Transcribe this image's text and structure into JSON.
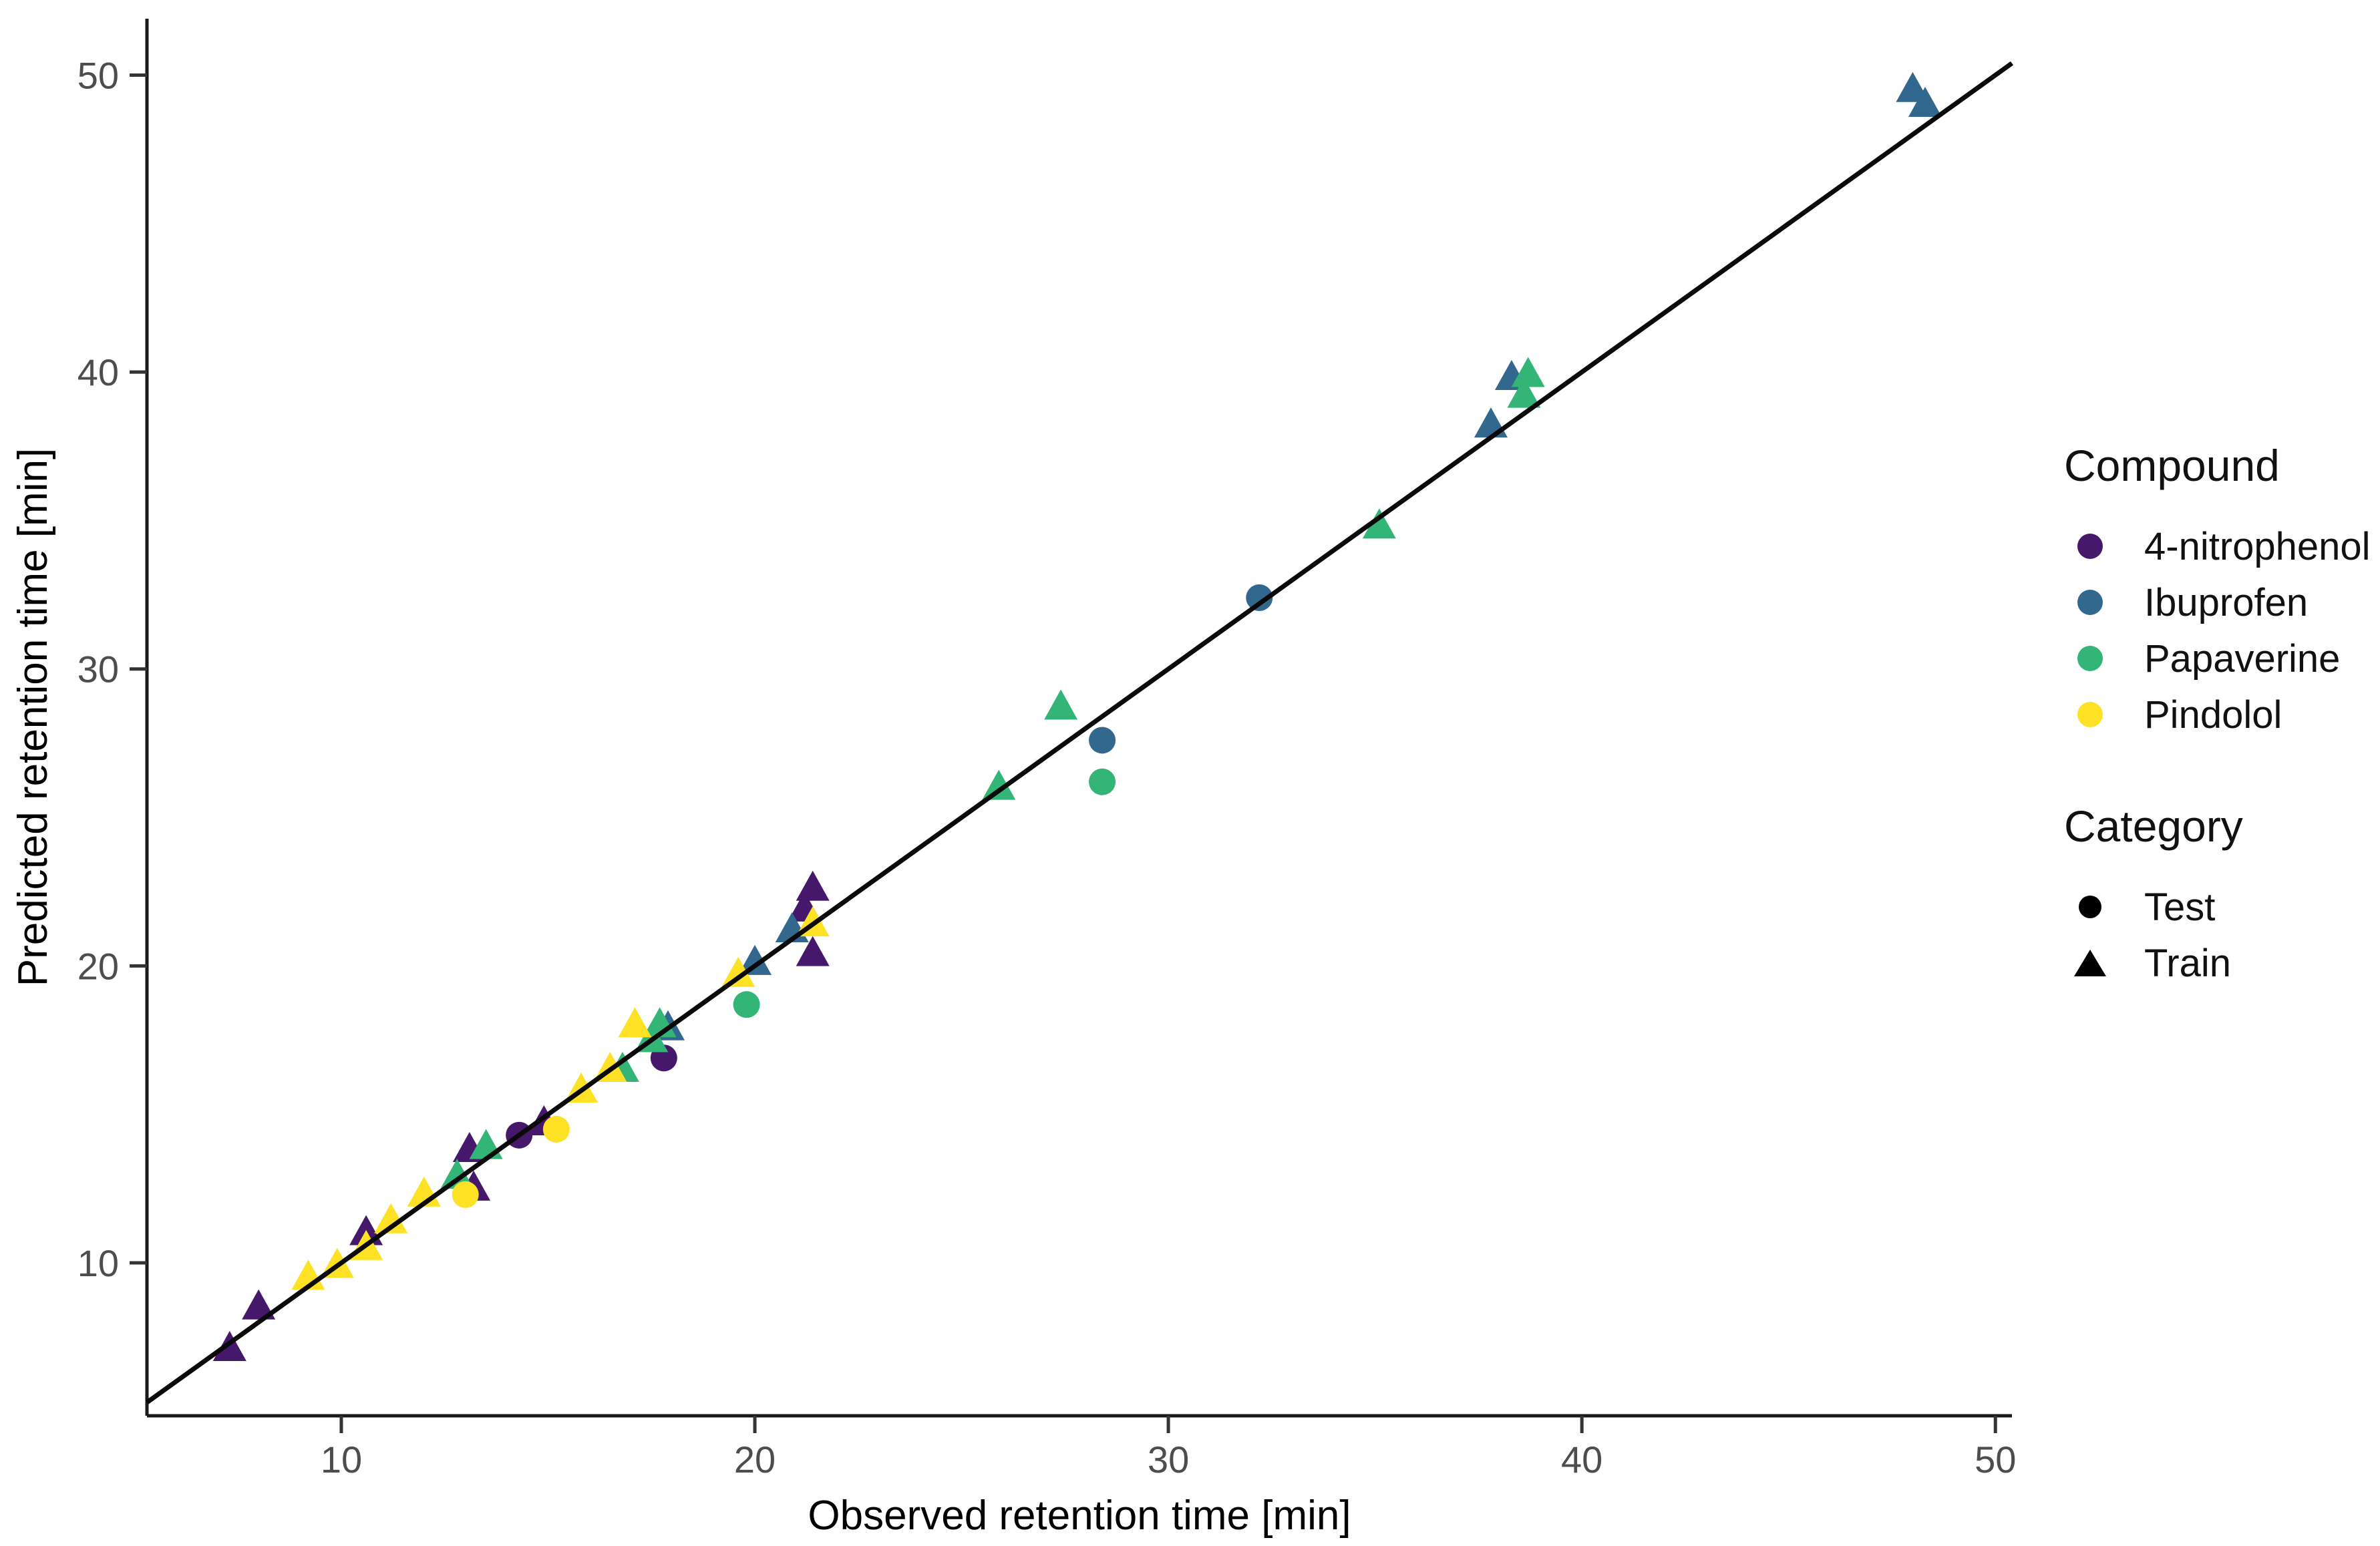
{
  "chart_data": {
    "type": "scatter",
    "title": "",
    "xlabel": "Observed retention time [min]",
    "ylabel": "Predicted retention time [min]",
    "xlim": [
      5.3,
      50.4
    ],
    "ylim": [
      4.85,
      51.9
    ],
    "xticks": [
      10,
      20,
      30,
      40,
      50
    ],
    "yticks": [
      10,
      20,
      30,
      40,
      50
    ],
    "grid": false,
    "legend_position": "right",
    "identity_line": {
      "label": "y = x",
      "color": "#0a0a0a"
    },
    "axis_color": "#1a1a1a",
    "tick_label_color": "#4d4d4d",
    "series": [
      {
        "name": "4-nitrophenol",
        "color": "#45186B",
        "points": [
          {
            "observed": 7.3,
            "predicted": 7.1,
            "category": "Train"
          },
          {
            "observed": 8.0,
            "predicted": 8.5,
            "category": "Train"
          },
          {
            "observed": 10.6,
            "predicted": 11.0,
            "category": "Train"
          },
          {
            "observed": 13.1,
            "predicted": 13.8,
            "category": "Train"
          },
          {
            "observed": 13.2,
            "predicted": 12.5,
            "category": "Train"
          },
          {
            "observed": 14.3,
            "predicted": 14.3,
            "category": "Test"
          },
          {
            "observed": 14.9,
            "predicted": 14.7,
            "category": "Train"
          },
          {
            "observed": 17.8,
            "predicted": 16.9,
            "category": "Test"
          },
          {
            "observed": 21.2,
            "predicted": 21.9,
            "category": "Train"
          },
          {
            "observed": 21.4,
            "predicted": 22.6,
            "category": "Train"
          },
          {
            "observed": 21.4,
            "predicted": 20.4,
            "category": "Train"
          }
        ]
      },
      {
        "name": "Ibuprofen",
        "color": "#33688E",
        "points": [
          {
            "observed": 17.9,
            "predicted": 17.9,
            "category": "Train"
          },
          {
            "observed": 20.0,
            "predicted": 20.1,
            "category": "Train"
          },
          {
            "observed": 20.9,
            "predicted": 21.2,
            "category": "Train"
          },
          {
            "observed": 28.4,
            "predicted": 27.6,
            "category": "Test"
          },
          {
            "observed": 32.2,
            "predicted": 32.4,
            "category": "Test"
          },
          {
            "observed": 37.8,
            "predicted": 38.2,
            "category": "Train"
          },
          {
            "observed": 38.3,
            "predicted": 39.8,
            "category": "Train"
          },
          {
            "observed": 48.0,
            "predicted": 49.5,
            "category": "Train"
          },
          {
            "observed": 48.3,
            "predicted": 49.0,
            "category": "Train"
          }
        ]
      },
      {
        "name": "Papaverine",
        "color": "#32B576",
        "points": [
          {
            "observed": 12.8,
            "predicted": 12.9,
            "category": "Train"
          },
          {
            "observed": 13.5,
            "predicted": 13.9,
            "category": "Train"
          },
          {
            "observed": 16.8,
            "predicted": 16.5,
            "category": "Train"
          },
          {
            "observed": 17.5,
            "predicted": 17.5,
            "category": "Train"
          },
          {
            "observed": 17.7,
            "predicted": 18.0,
            "category": "Train"
          },
          {
            "observed": 19.8,
            "predicted": 18.7,
            "category": "Test"
          },
          {
            "observed": 25.9,
            "predicted": 26.0,
            "category": "Train"
          },
          {
            "observed": 27.4,
            "predicted": 28.7,
            "category": "Train"
          },
          {
            "observed": 28.4,
            "predicted": 26.2,
            "category": "Test"
          },
          {
            "observed": 35.1,
            "predicted": 34.8,
            "category": "Train"
          },
          {
            "observed": 38.6,
            "predicted": 39.2,
            "category": "Train"
          },
          {
            "observed": 38.7,
            "predicted": 39.9,
            "category": "Train"
          }
        ]
      },
      {
        "name": "Pindolol",
        "color": "#FDE125",
        "points": [
          {
            "observed": 9.2,
            "predicted": 9.5,
            "category": "Train"
          },
          {
            "observed": 9.9,
            "predicted": 9.9,
            "category": "Train"
          },
          {
            "observed": 10.6,
            "predicted": 10.5,
            "category": "Train"
          },
          {
            "observed": 11.2,
            "predicted": 11.4,
            "category": "Train"
          },
          {
            "observed": 12.0,
            "predicted": 12.3,
            "category": "Train"
          },
          {
            "observed": 13.0,
            "predicted": 12.3,
            "category": "Test"
          },
          {
            "observed": 15.2,
            "predicted": 14.5,
            "category": "Test"
          },
          {
            "observed": 15.8,
            "predicted": 15.8,
            "category": "Train"
          },
          {
            "observed": 16.5,
            "predicted": 16.5,
            "category": "Train"
          },
          {
            "observed": 17.1,
            "predicted": 18.0,
            "category": "Train"
          },
          {
            "observed": 19.6,
            "predicted": 19.7,
            "category": "Train"
          },
          {
            "observed": 21.4,
            "predicted": 21.4,
            "category": "Train"
          }
        ]
      }
    ],
    "legend": {
      "compound": {
        "title": "Compound",
        "items": [
          {
            "label": "4-nitrophenol",
            "color": "#45186B"
          },
          {
            "label": "Ibuprofen",
            "color": "#33688E"
          },
          {
            "label": "Papaverine",
            "color": "#32B576"
          },
          {
            "label": "Pindolol",
            "color": "#FDE125"
          }
        ]
      },
      "category": {
        "title": "Category",
        "items": [
          {
            "label": "Test",
            "marker": "circle"
          },
          {
            "label": "Train",
            "marker": "triangle"
          }
        ]
      }
    }
  }
}
